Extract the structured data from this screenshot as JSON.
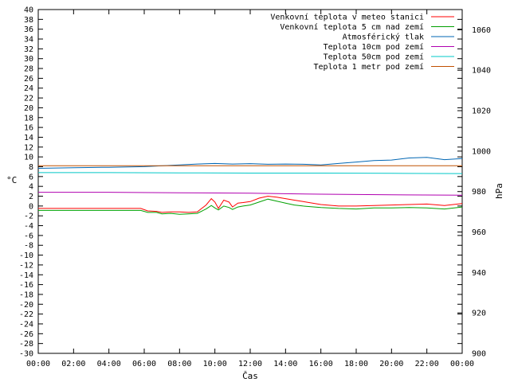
{
  "chart_data": {
    "type": "line",
    "xlabel": "Čas",
    "ylabel": "°C",
    "y2label": "hPa",
    "x_ticks": [
      "00:00",
      "02:00",
      "04:00",
      "06:00",
      "08:00",
      "10:00",
      "12:00",
      "14:00",
      "16:00",
      "18:00",
      "20:00",
      "22:00",
      "00:00"
    ],
    "xlim": [
      0,
      24
    ],
    "ylim": [
      -30,
      40
    ],
    "y_ticks": [
      40,
      38,
      36,
      34,
      32,
      30,
      28,
      26,
      24,
      22,
      20,
      18,
      16,
      14,
      12,
      10,
      8,
      6,
      4,
      2,
      0,
      -2,
      -4,
      -6,
      -8,
      -10,
      -12,
      -14,
      -16,
      -18,
      -20,
      -22,
      -24,
      -26,
      -28,
      -30
    ],
    "y2lim": [
      900,
      1070
    ],
    "y2_ticks": [
      1060,
      1040,
      1020,
      1000,
      980,
      960,
      940,
      920,
      900
    ],
    "grid": false,
    "legend_position": "top-right",
    "series": [
      {
        "name": "Venkovní teplota v meteo stanici",
        "color": "#ff0000",
        "axis": "left",
        "x": [
          0,
          2,
          4,
          5.8,
          6.2,
          6.7,
          7,
          7.5,
          8,
          8.5,
          9,
          9.5,
          9.8,
          10,
          10.2,
          10.5,
          10.8,
          11,
          11.3,
          11.6,
          12,
          12.5,
          13,
          13.5,
          14,
          14.5,
          15,
          16,
          17,
          18,
          19,
          20,
          21,
          22,
          23,
          24
        ],
        "y": [
          -0.5,
          -0.5,
          -0.5,
          -0.5,
          -1.0,
          -1.1,
          -1.3,
          -1.2,
          -1.2,
          -1.3,
          -1.2,
          0.2,
          1.5,
          0.8,
          -0.5,
          1.2,
          0.8,
          -0.2,
          0.6,
          0.7,
          0.9,
          1.6,
          2.0,
          1.8,
          1.5,
          1.2,
          0.9,
          0.3,
          0.0,
          0.0,
          0.1,
          0.2,
          0.3,
          0.4,
          0.1,
          0.5
        ]
      },
      {
        "name": "Venkovní teplota 5 cm nad zemí",
        "color": "#00a000",
        "axis": "left",
        "x": [
          0,
          2,
          4,
          5.8,
          6.2,
          6.7,
          7,
          7.5,
          8,
          8.5,
          9,
          9.5,
          9.8,
          10,
          10.2,
          10.5,
          10.8,
          11,
          11.3,
          11.6,
          12,
          12.5,
          13,
          13.5,
          14,
          14.5,
          15,
          16,
          17,
          18,
          19,
          20,
          21,
          22,
          23,
          24
        ],
        "y": [
          -0.9,
          -0.9,
          -0.9,
          -0.9,
          -1.3,
          -1.3,
          -1.6,
          -1.5,
          -1.7,
          -1.6,
          -1.5,
          -0.6,
          0.1,
          -0.4,
          -0.8,
          0.0,
          -0.3,
          -0.7,
          -0.2,
          0.0,
          0.2,
          0.8,
          1.4,
          1.0,
          0.6,
          0.2,
          0.0,
          -0.3,
          -0.5,
          -0.6,
          -0.4,
          -0.4,
          -0.3,
          -0.4,
          -0.6,
          -0.2
        ]
      },
      {
        "name": "Atmosférický tlak",
        "color": "#0066b3",
        "axis": "right",
        "x": [
          0,
          2,
          4,
          6,
          8,
          9,
          10,
          11,
          12,
          13,
          14,
          15,
          16,
          17,
          18,
          19,
          20,
          21,
          22,
          23,
          24
        ],
        "y": [
          991.5,
          991.8,
          992.0,
          992.3,
          993.2,
          993.6,
          993.9,
          993.6,
          993.8,
          993.5,
          993.6,
          993.5,
          993.2,
          993.9,
          994.6,
          995.3,
          995.6,
          996.6,
          996.9,
          995.8,
          996.3
        ]
      },
      {
        "name": "Teplota 10cm pod zemí",
        "color": "#b000b0",
        "axis": "left",
        "x": [
          0,
          4,
          8,
          12,
          16,
          20,
          24
        ],
        "y": [
          2.8,
          2.8,
          2.7,
          2.6,
          2.4,
          2.3,
          2.2
        ]
      },
      {
        "name": "Teplota 50cm pod zemí",
        "color": "#00c8c8",
        "axis": "left",
        "x": [
          0,
          4,
          8,
          12,
          16,
          20,
          24
        ],
        "y": [
          6.8,
          6.8,
          6.75,
          6.7,
          6.7,
          6.65,
          6.6
        ]
      },
      {
        "name": "Teplota 1 metr pod zemí",
        "color": "#c05000",
        "axis": "left",
        "x": [
          0,
          24
        ],
        "y": [
          8.2,
          8.2
        ]
      }
    ]
  }
}
